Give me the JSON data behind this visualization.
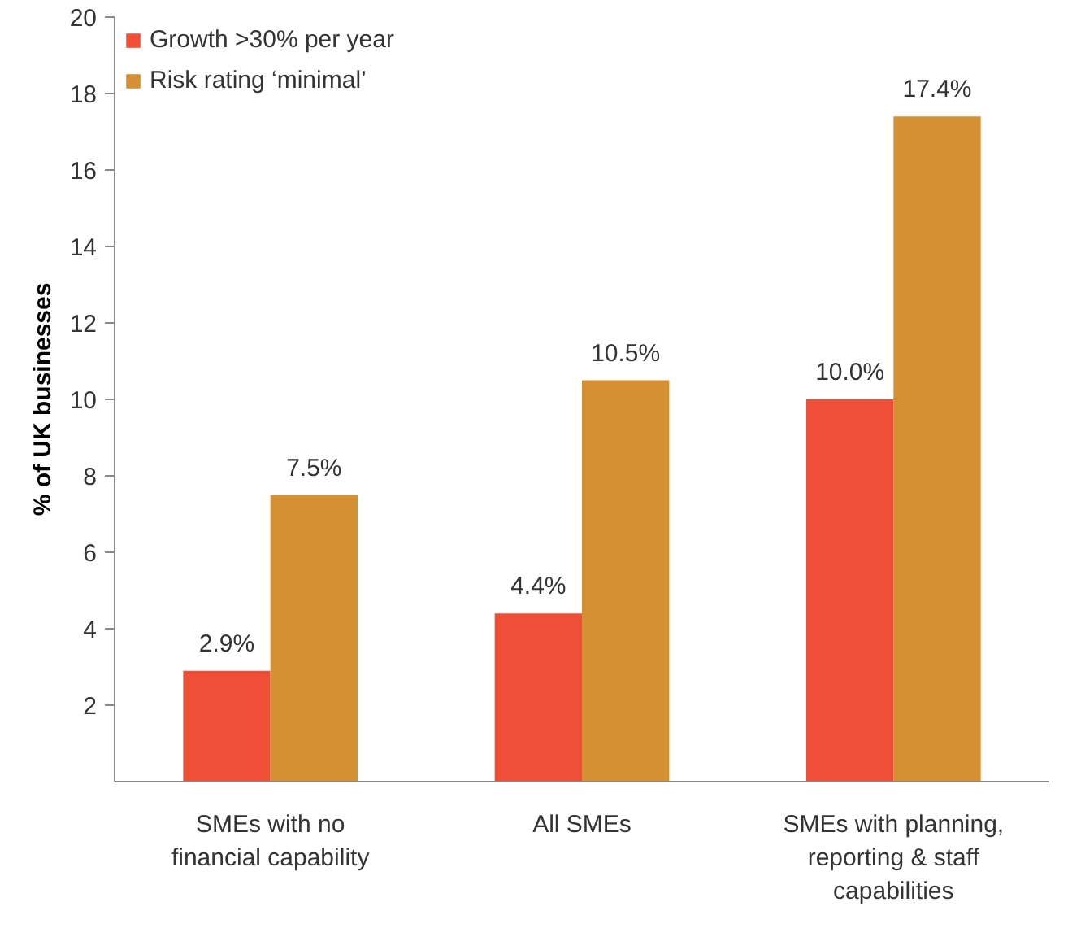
{
  "chart_data": {
    "type": "bar",
    "ylabel": "% of UK businesses",
    "categories": [
      "SMEs with no\nfinancial capability",
      "All SMEs",
      "SMEs with planning,\nreporting & staff\ncapabilities"
    ],
    "series": [
      {
        "name": "Growth >30% per year",
        "color": "#ee4f36",
        "values": [
          2.9,
          4.4,
          10.0
        ],
        "value_labels": [
          "2.9%",
          "4.4%",
          "10.0%"
        ]
      },
      {
        "name": "Risk rating ‘minimal’",
        "color": "#d49032",
        "values": [
          7.5,
          10.5,
          17.4
        ],
        "value_labels": [
          "7.5%",
          "10.5%",
          "17.4%"
        ]
      }
    ],
    "ylim": [
      0,
      20
    ],
    "yticks": [
      2,
      4,
      6,
      8,
      10,
      12,
      14,
      16,
      18,
      20
    ],
    "grid": false,
    "legend": "top left"
  }
}
